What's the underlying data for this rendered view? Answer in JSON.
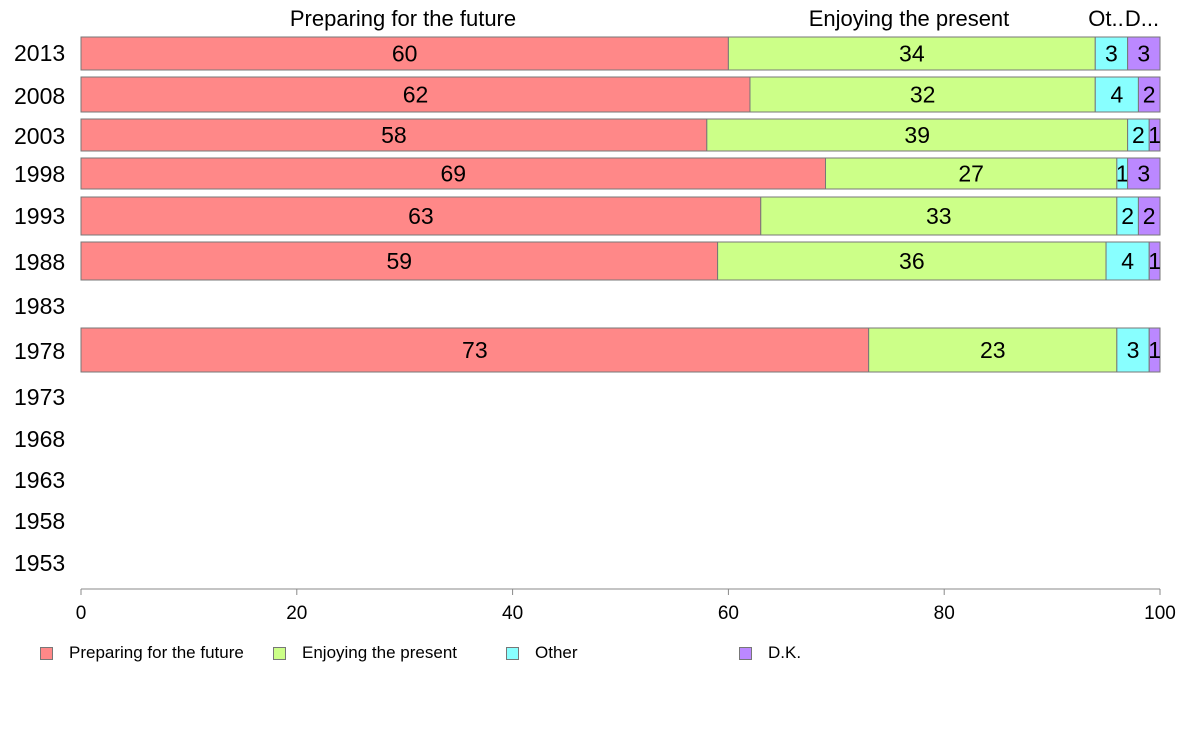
{
  "chart_data": {
    "type": "bar",
    "orientation": "horizontal",
    "stacked": true,
    "categories": [
      "2013",
      "2008",
      "2003",
      "1998",
      "1993",
      "1988",
      "1983",
      "1978",
      "1973",
      "1968",
      "1963",
      "1958",
      "1953"
    ],
    "series": [
      {
        "name": "Preparing for the future",
        "color": "#ff8888",
        "values": [
          60,
          62,
          58,
          69,
          63,
          59,
          null,
          73,
          null,
          null,
          null,
          null,
          null
        ]
      },
      {
        "name": "Enjoying the present",
        "color": "#ccff88",
        "values": [
          34,
          32,
          39,
          27,
          33,
          36,
          null,
          23,
          null,
          null,
          null,
          null,
          null
        ]
      },
      {
        "name": "Other",
        "color": "#88ffff",
        "values": [
          3,
          4,
          2,
          1,
          2,
          4,
          null,
          3,
          null,
          null,
          null,
          null,
          null
        ]
      },
      {
        "name": "D.K.",
        "color": "#bb88ff",
        "values": [
          3,
          2,
          1,
          3,
          2,
          1,
          null,
          1,
          null,
          null,
          null,
          null,
          null
        ]
      }
    ],
    "top_labels": [
      "Preparing for the future",
      "Enjoying the present",
      "Ot..",
      "D..."
    ],
    "xlim": [
      0,
      100
    ],
    "xticks": [
      "0",
      "20",
      "40",
      "60",
      "80",
      "100"
    ],
    "title": "",
    "xlabel": "",
    "ylabel": "",
    "grid": false,
    "legend_position": "bottom"
  }
}
